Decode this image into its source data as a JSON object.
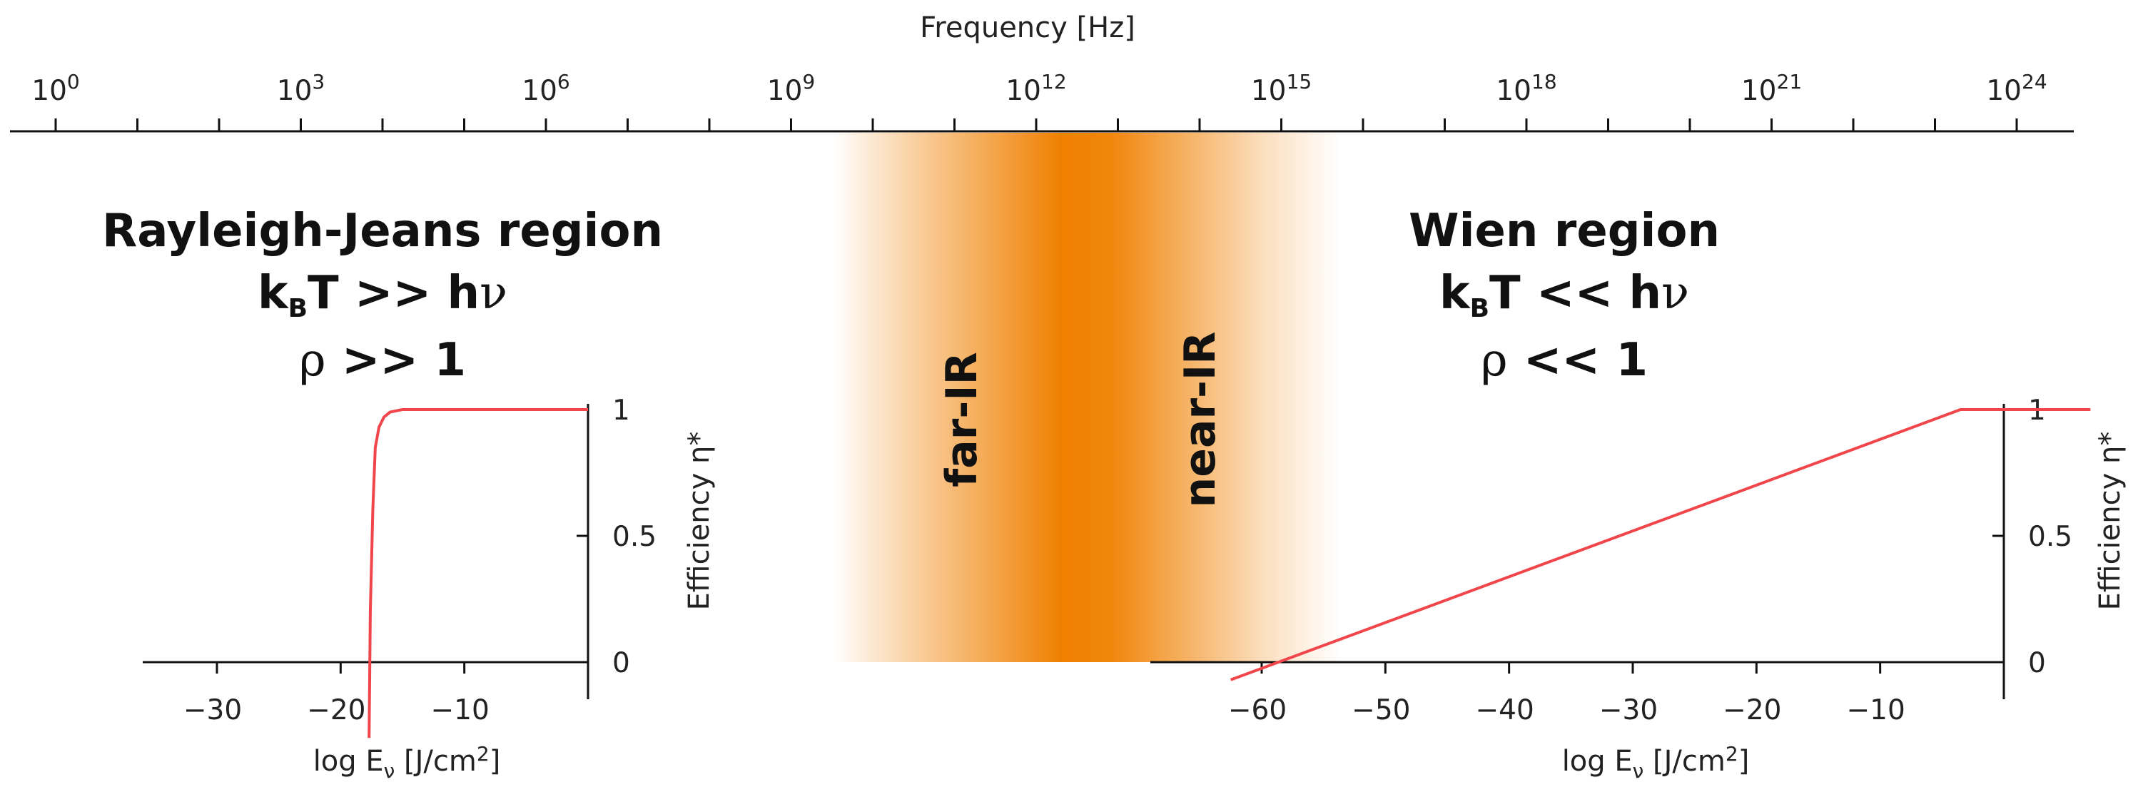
{
  "top_axis": {
    "title": "Frequency [Hz]",
    "labels": [
      {
        "base": "10",
        "exp": "0"
      },
      {
        "base": "10",
        "exp": "3"
      },
      {
        "base": "10",
        "exp": "6"
      },
      {
        "base": "10",
        "exp": "9"
      },
      {
        "base": "10",
        "exp": "12"
      },
      {
        "base": "10",
        "exp": "15"
      },
      {
        "base": "10",
        "exp": "18"
      },
      {
        "base": "10",
        "exp": "21"
      },
      {
        "base": "10",
        "exp": "24"
      }
    ]
  },
  "left_region": {
    "title": "Rayleigh-Jeans region",
    "cond_k": "k",
    "cond_sub": "B",
    "cond_rest": "T >> h",
    "cond_nu": "ν",
    "rho_symbol": "ρ",
    "rho_rest": ">> 1"
  },
  "right_region": {
    "title": "Wien region",
    "cond_k": "k",
    "cond_sub": "B",
    "cond_rest": "T << h",
    "cond_nu": "ν",
    "rho_symbol": "ρ",
    "rho_rest": "<< 1"
  },
  "band": {
    "far_label": "far-IR",
    "near_label": "near-IR",
    "color": "#f08000"
  },
  "efficiency_label": "Efficiency η*",
  "x_axis_label": {
    "prefix": "log E",
    "sub": "ν",
    "suffix": " [J/cm",
    "sup": "2",
    "end": "]"
  },
  "curve_color": "#f0464b",
  "chart_data": [
    {
      "type": "line",
      "xlabel": "log Eν [J/cm²]",
      "ylabel": "Efficiency η*",
      "xticks": [
        "−30",
        "−20",
        "−10"
      ],
      "yticks": [
        "0",
        "0.5",
        "1"
      ],
      "xlim": [
        -36,
        0
      ],
      "ylim": [
        0,
        1
      ],
      "series": [
        {
          "x": [
            -17.7,
            -17.6,
            -17.4,
            -17.2,
            -16.9,
            -16.5,
            -16.0,
            -15.0,
            -14.0,
            0
          ],
          "y": [
            -0.3,
            0.2,
            0.6,
            0.85,
            0.93,
            0.97,
            0.99,
            1.0,
            1.0,
            1.0
          ]
        }
      ]
    },
    {
      "type": "line",
      "xlabel": "log Eν [J/cm²]",
      "ylabel": "Efficiency η*",
      "xticks": [
        "−60",
        "−50",
        "−40",
        "−30",
        "−20",
        "−10"
      ],
      "yticks": [
        "0",
        "0.5",
        "1"
      ],
      "xlim": [
        -69,
        0
      ],
      "ylim": [
        0,
        1
      ],
      "series": [
        {
          "x": [
            -62.5,
            -3.5,
            0,
            7
          ],
          "y": [
            -0.07,
            1.0,
            1.0,
            1.0
          ]
        }
      ]
    }
  ]
}
